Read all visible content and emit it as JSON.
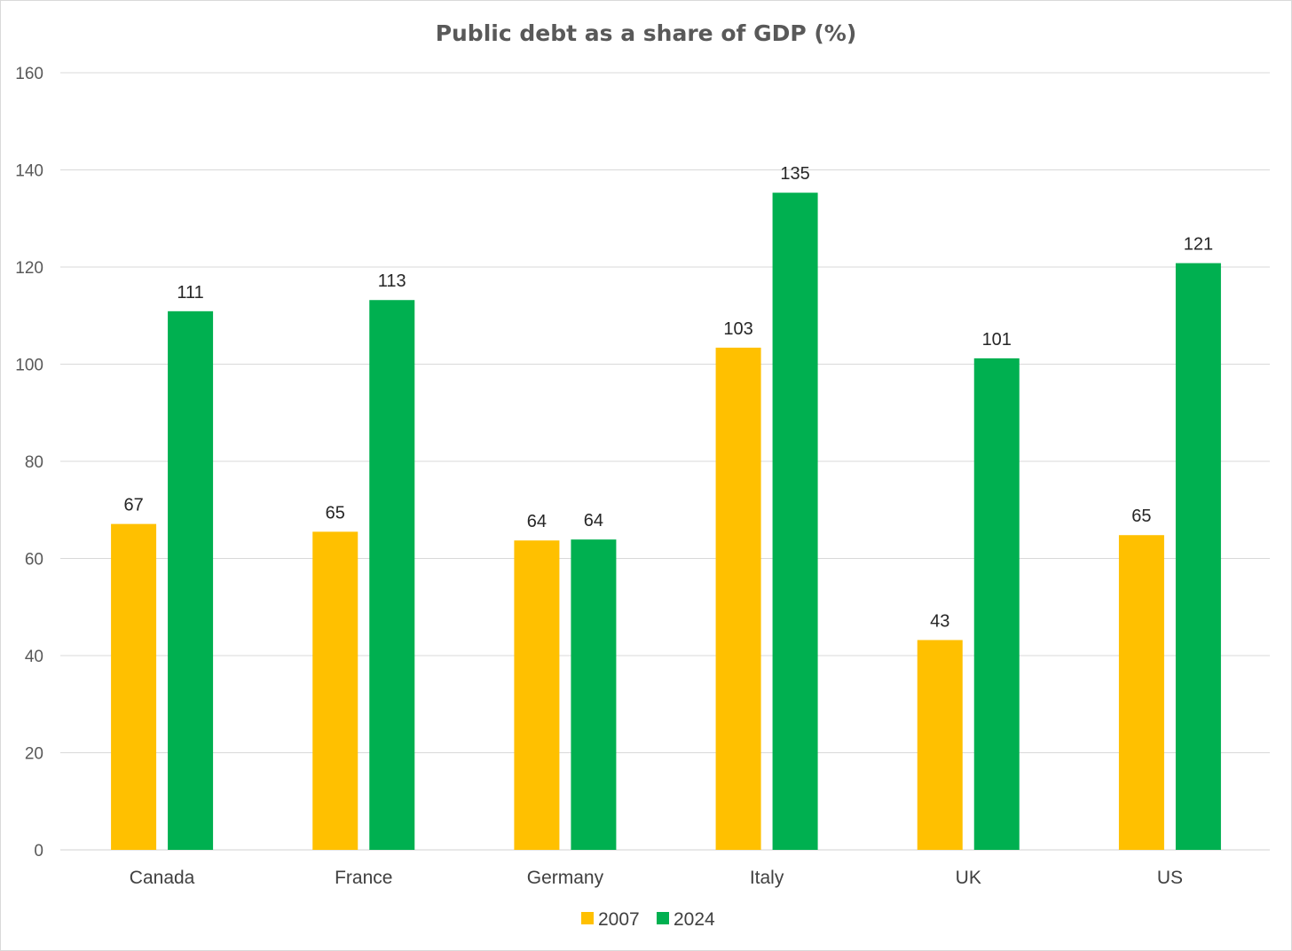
{
  "chart_data": {
    "type": "bar",
    "title": "Public debt as a share of GDP (%)",
    "categories": [
      "Canada",
      "France",
      "Germany",
      "Italy",
      "UK",
      "US"
    ],
    "series": [
      {
        "name": "2007",
        "color": "#ffc000",
        "values": [
          67,
          65,
          64,
          103,
          43,
          65
        ],
        "exact": [
          67.1,
          65.5,
          63.7,
          103.4,
          43.2,
          64.8
        ]
      },
      {
        "name": "2024",
        "color": "#00b050",
        "values": [
          111,
          113,
          64,
          135,
          101,
          121
        ],
        "exact": [
          110.9,
          113.2,
          63.9,
          135.3,
          101.2,
          120.8
        ]
      }
    ],
    "yticks": [
      0,
      20,
      40,
      60,
      80,
      100,
      120,
      140,
      160
    ],
    "ylim": [
      0,
      160
    ],
    "xlabel": "",
    "ylabel": "",
    "grid": true,
    "legend": "bottom"
  }
}
